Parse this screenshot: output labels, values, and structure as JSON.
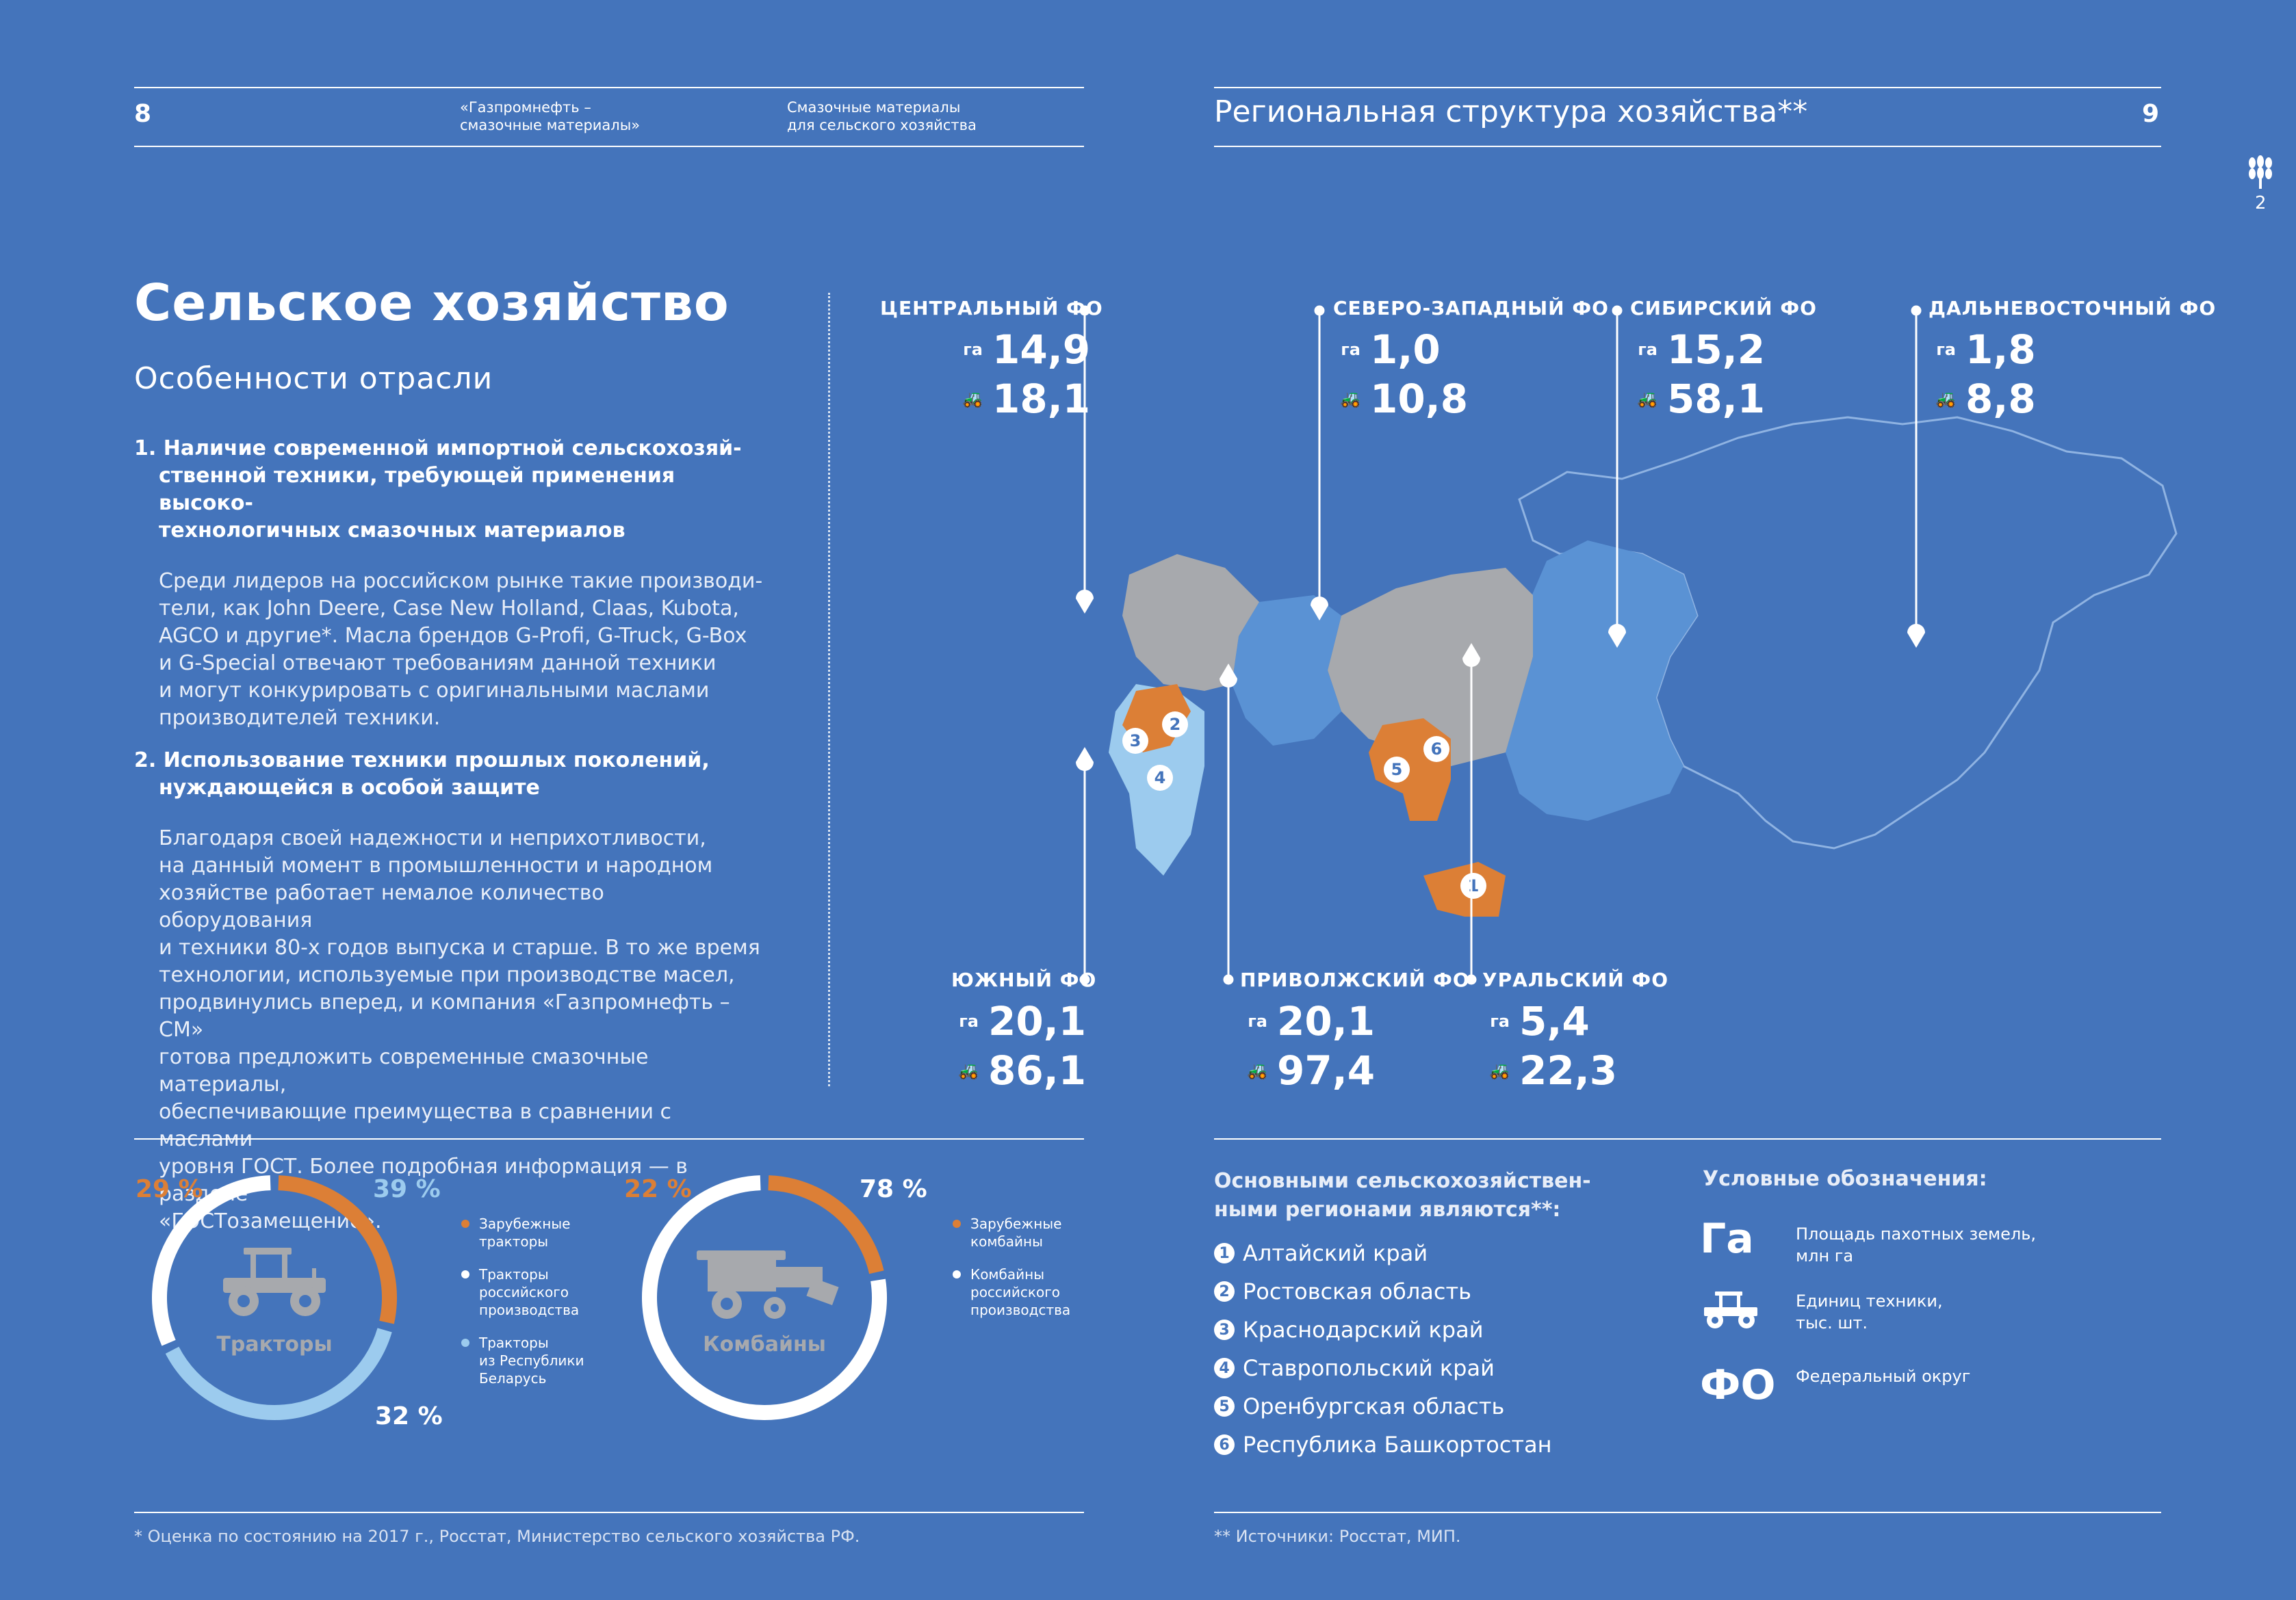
{
  "colors": {
    "background": "#4474bb",
    "orange": "#dc7f36",
    "light_blue": "#9ccbee",
    "gray": "#a7a9ad",
    "mid_blue": "#5a92d4"
  },
  "left_page": {
    "page_number": "8",
    "header_col1": [
      "«Газпромнефть –",
      "смазочные материалы»"
    ],
    "header_col2": [
      "Смазочные материалы",
      "для сельского хозяйства"
    ],
    "title": "Сельское хозяйство",
    "subtitle": "Особенности отрасли",
    "points": [
      {
        "title_lines": [
          "1. Наличие современной импортной сельскохозяй-",
          "ственной техники, требующей применения высоко-",
          "технологичных смазочных материалов"
        ],
        "body_lines": [
          "Среди лидеров на российском рынке такие производи-",
          "тели, как John Deere, Case New Holland, Claas, Kubota,",
          "AGCO и другие*. Масла брендов G-Profi, G-Truck, G-Box",
          "и G-Special отвечают требованиям данной техники",
          "и могут конкурировать с оригинальными маслами",
          "производителей техники."
        ]
      },
      {
        "title_lines": [
          "2. Использование техники прошлых поколений,",
          "нуждающейся в особой защите"
        ],
        "body_lines": [
          "Благодаря своей надежности и неприхотливости,",
          "на данный момент в промышленности и народном",
          "хозяйстве работает немалое количество оборудования",
          "и техники 80-х годов выпуска и старше. В то же время",
          "технологии, используемые при производстве масел,",
          "продвинулись вперед, и компания  «Газпромнефть – СМ»",
          "готова предложить современные смазочные материалы,",
          "обеспечивающие преимущества в сравнении с маслами",
          "уровня ГОСТ. Более подробная информация — в разделе",
          "«ГОСТозамещение»."
        ]
      }
    ],
    "donut_tractors": {
      "label": "Тракторы",
      "segments": [
        {
          "pct_label": "29 %",
          "value": 29,
          "color": "#dc7f36"
        },
        {
          "pct_label": "39 %",
          "value": 39,
          "color": "#9ccbee"
        },
        {
          "pct_label": "32 %",
          "value": 32,
          "color": "#ffffff"
        }
      ],
      "legend": [
        {
          "text": [
            "Зарубежные",
            "тракторы"
          ],
          "color": "#dc7f36"
        },
        {
          "text": [
            "Тракторы",
            "российского",
            "производства"
          ],
          "color": "#ffffff"
        },
        {
          "text": [
            "Тракторы",
            "из Республики",
            "Беларусь"
          ],
          "color": "#9ccbee"
        }
      ]
    },
    "donut_combines": {
      "label": "Комбайны",
      "segments": [
        {
          "pct_label": "22 %",
          "value": 22,
          "color": "#dc7f36"
        },
        {
          "pct_label": "78 %",
          "value": 78,
          "color": "#ffffff"
        }
      ],
      "legend": [
        {
          "text": [
            "Зарубежные",
            "комбайны"
          ],
          "color": "#dc7f36"
        },
        {
          "text": [
            "Комбайны",
            "российского",
            "производства"
          ],
          "color": "#ffffff"
        }
      ]
    },
    "footnote": "* Оценка по состоянию на 2017 г., Росстат, Министерство сельского хозяйства РФ."
  },
  "right_page": {
    "header_title": "Региональная структура хозяйства**",
    "page_number": "9",
    "side_tab_number": "2",
    "ga_icon": "га",
    "tractor_icon": "tractor-icon",
    "districts": [
      {
        "name": "ЦЕНТРАЛЬНЫЙ ФО",
        "area": "14,9",
        "units": "18,1"
      },
      {
        "name": "СЕВЕРО-ЗАПАДНЫЙ ФО",
        "area": "1,0",
        "units": "10,8"
      },
      {
        "name": "СИБИРСКИЙ ФО",
        "area": "15,2",
        "units": "58,1"
      },
      {
        "name": "ДАЛЬНЕВОСТОЧНЫЙ ФО",
        "area": "1,8",
        "units": "8,8"
      },
      {
        "name": "ЮЖНЫЙ ФО",
        "area": "20,1",
        "units": "86,1"
      },
      {
        "name": "ПРИВОЛЖСКИЙ ФО",
        "area": "20,1",
        "units": "97,4"
      },
      {
        "name": "УРАЛЬСКИЙ ФО",
        "area": "5,4",
        "units": "22,3"
      }
    ],
    "map_badges": [
      "1",
      "2",
      "3",
      "4",
      "5",
      "6"
    ],
    "regions_title": [
      "Основными сельскохозяйствен-",
      "ными регионами являются**:"
    ],
    "regions": [
      {
        "n": "1",
        "name": "Алтайский край"
      },
      {
        "n": "2",
        "name": "Ростовская область"
      },
      {
        "n": "3",
        "name": "Краснодарский край"
      },
      {
        "n": "4",
        "name": "Ставропольский край"
      },
      {
        "n": "5",
        "name": "Оренбургская область"
      },
      {
        "n": "6",
        "name": "Республика Башкортостан"
      }
    ],
    "legend_title": "Условные обозначения:",
    "legend_items": [
      {
        "symbol": "Га",
        "text": [
          "Площадь пахотных земель,",
          "млн га"
        ]
      },
      {
        "symbol": "tractor-icon",
        "text": [
          "Единиц техники,",
          "тыс. шт."
        ]
      },
      {
        "symbol": "ФО",
        "text": [
          "Федеральный округ"
        ]
      }
    ],
    "footnote": "** Источники: Росстат, МИП."
  }
}
